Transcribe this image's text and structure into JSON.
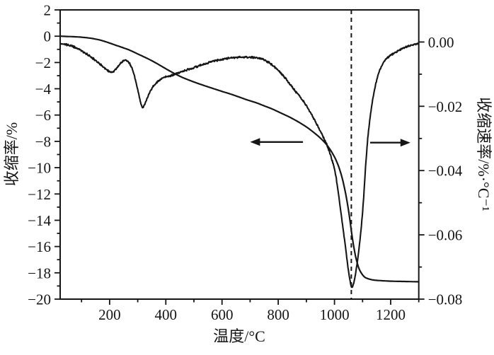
{
  "figure": {
    "background": "#ffffff",
    "stroke_color": "#161616"
  },
  "chart_data": {
    "type": "line",
    "title": "",
    "xlabel": "温度/°C",
    "ylabel_left": "收缩率/%",
    "ylabel_right": "收缩速率/%·°C⁻¹",
    "xlim": [
      24,
      1300
    ],
    "ylim_left": [
      -20,
      2
    ],
    "ylim_right": [
      -0.08,
      0.01
    ],
    "grid": false,
    "legend": "none",
    "x_ticks": {
      "values": [
        200,
        400,
        600,
        800,
        1000,
        1200
      ],
      "labels": [
        "200",
        "400",
        "600",
        "800",
        "1000",
        "1200"
      ],
      "minor": [
        100,
        300,
        500,
        700,
        900,
        1100,
        1300
      ]
    },
    "y_left_ticks": {
      "values": [
        2,
        0,
        -2,
        -4,
        -6,
        -8,
        -10,
        -12,
        -14,
        -16,
        -18,
        -20
      ],
      "labels": [
        "2",
        "0",
        "−2",
        "−4",
        "−6",
        "−8",
        "−10",
        "−12",
        "−14",
        "−16",
        "−18",
        "−20"
      ],
      "minor": [
        1,
        -1,
        -3,
        -5,
        -7,
        -9,
        -11,
        -13,
        -15,
        -17,
        -19
      ]
    },
    "y_right_ticks": {
      "values": [
        0,
        -0.02,
        -0.04,
        -0.06,
        -0.08
      ],
      "labels": [
        "0.00",
        "−0.02",
        "−0.04",
        "−0.06",
        "−0.08"
      ],
      "minor": [
        -0.01,
        -0.03,
        -0.05,
        -0.07
      ]
    },
    "dashed_line_x": 1060,
    "arrows": [
      {
        "points_to": "left",
        "axis": "left",
        "y_value": -8.05,
        "t_head": 700,
        "t_tail": 888
      },
      {
        "points_to": "right",
        "axis": "right",
        "y_value": -0.0313,
        "t_head": 1270,
        "t_tail": 1127
      }
    ],
    "series": [
      {
        "name": "shrinkage",
        "label": "收缩率",
        "axis": "left",
        "style": "smooth",
        "points": [
          [
            24,
            0
          ],
          [
            60,
            -0.03
          ],
          [
            90,
            -0.06
          ],
          [
            120,
            -0.12
          ],
          [
            150,
            -0.22
          ],
          [
            180,
            -0.38
          ],
          [
            210,
            -0.6
          ],
          [
            240,
            -0.82
          ],
          [
            270,
            -1.05
          ],
          [
            300,
            -1.35
          ],
          [
            330,
            -1.65
          ],
          [
            360,
            -1.98
          ],
          [
            390,
            -2.35
          ],
          [
            420,
            -2.72
          ],
          [
            450,
            -3.05
          ],
          [
            480,
            -3.32
          ],
          [
            510,
            -3.56
          ],
          [
            540,
            -3.78
          ],
          [
            570,
            -3.99
          ],
          [
            600,
            -4.2
          ],
          [
            630,
            -4.4
          ],
          [
            660,
            -4.62
          ],
          [
            690,
            -4.85
          ],
          [
            720,
            -5.05
          ],
          [
            750,
            -5.3
          ],
          [
            780,
            -5.55
          ],
          [
            810,
            -5.85
          ],
          [
            840,
            -6.15
          ],
          [
            870,
            -6.5
          ],
          [
            900,
            -6.9
          ],
          [
            925,
            -7.3
          ],
          [
            950,
            -7.75
          ],
          [
            972,
            -8.25
          ],
          [
            990,
            -8.8
          ],
          [
            1005,
            -9.4
          ],
          [
            1018,
            -10.1
          ],
          [
            1030,
            -11.0
          ],
          [
            1040,
            -12.0
          ],
          [
            1049,
            -13.1
          ],
          [
            1057,
            -14.3
          ],
          [
            1064,
            -15.4
          ],
          [
            1071,
            -16.3
          ],
          [
            1078,
            -17.0
          ],
          [
            1086,
            -17.6
          ],
          [
            1095,
            -18.0
          ],
          [
            1106,
            -18.3
          ],
          [
            1120,
            -18.45
          ],
          [
            1140,
            -18.55
          ],
          [
            1170,
            -18.6
          ],
          [
            1210,
            -18.64
          ],
          [
            1255,
            -18.66
          ],
          [
            1299,
            -18.68
          ]
        ]
      },
      {
        "name": "shrinkage-rate",
        "label": "收缩速率",
        "axis": "right",
        "style": "noisy",
        "points": [
          [
            24,
            -0.0004
          ],
          [
            45,
            -0.0008
          ],
          [
            65,
            -0.0013
          ],
          [
            85,
            -0.002
          ],
          [
            105,
            -0.003
          ],
          [
            125,
            -0.0041
          ],
          [
            145,
            -0.0054
          ],
          [
            165,
            -0.0068
          ],
          [
            180,
            -0.008
          ],
          [
            193,
            -0.0089
          ],
          [
            203,
            -0.0093
          ],
          [
            212,
            -0.0092
          ],
          [
            222,
            -0.0085
          ],
          [
            234,
            -0.0072
          ],
          [
            246,
            -0.0061
          ],
          [
            256,
            -0.0057
          ],
          [
            266,
            -0.0061
          ],
          [
            276,
            -0.0075
          ],
          [
            286,
            -0.0098
          ],
          [
            296,
            -0.0132
          ],
          [
            306,
            -0.0172
          ],
          [
            314,
            -0.0199
          ],
          [
            320,
            -0.0201
          ],
          [
            327,
            -0.019
          ],
          [
            336,
            -0.017
          ],
          [
            348,
            -0.0148
          ],
          [
            362,
            -0.0131
          ],
          [
            380,
            -0.0117
          ],
          [
            400,
            -0.0108
          ],
          [
            420,
            -0.0104
          ],
          [
            445,
            -0.0096
          ],
          [
            470,
            -0.0088
          ],
          [
            500,
            -0.008
          ],
          [
            530,
            -0.007
          ],
          [
            560,
            -0.0062
          ],
          [
            590,
            -0.0056
          ],
          [
            620,
            -0.0051
          ],
          [
            650,
            -0.0048
          ],
          [
            680,
            -0.0047
          ],
          [
            710,
            -0.0048
          ],
          [
            740,
            -0.0052
          ],
          [
            770,
            -0.0066
          ],
          [
            800,
            -0.0088
          ],
          [
            830,
            -0.0118
          ],
          [
            860,
            -0.0152
          ],
          [
            890,
            -0.0185
          ],
          [
            920,
            -0.0228
          ],
          [
            950,
            -0.0278
          ],
          [
            975,
            -0.0325
          ],
          [
            1000,
            -0.0395
          ],
          [
            1013,
            -0.0465
          ],
          [
            1026,
            -0.055
          ],
          [
            1038,
            -0.063
          ],
          [
            1048,
            -0.07
          ],
          [
            1056,
            -0.0745
          ],
          [
            1061,
            -0.0763
          ],
          [
            1066,
            -0.0757
          ],
          [
            1072,
            -0.0737
          ],
          [
            1080,
            -0.0692
          ],
          [
            1088,
            -0.0638
          ],
          [
            1096,
            -0.057
          ],
          [
            1104,
            -0.0482
          ],
          [
            1112,
            -0.0372
          ],
          [
            1120,
            -0.0287
          ],
          [
            1130,
            -0.0215
          ],
          [
            1140,
            -0.016
          ],
          [
            1152,
            -0.0112
          ],
          [
            1165,
            -0.008
          ],
          [
            1180,
            -0.0057
          ],
          [
            1200,
            -0.0041
          ],
          [
            1225,
            -0.0029
          ],
          [
            1250,
            -0.0017
          ],
          [
            1275,
            -0.001
          ],
          [
            1299,
            -0.0005
          ]
        ]
      }
    ]
  }
}
